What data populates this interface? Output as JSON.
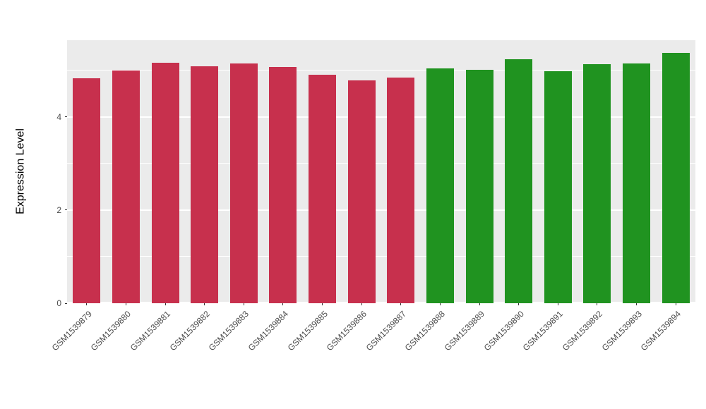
{
  "figure": {
    "background": "#FFFFFF"
  },
  "chart_data": {
    "type": "bar",
    "title": "",
    "xlabel": "",
    "ylabel": "Expression Level",
    "ylim": [
      0,
      5.65
    ],
    "yticks": [
      0,
      2,
      4
    ],
    "minor_yticks": [
      1,
      3,
      5
    ],
    "grid": true,
    "legend": "none",
    "panel_bg": "#EBEBEB",
    "grid_color": "#FFFFFF",
    "tick_color": "#333333",
    "axis_text_color": "#4D4D4D",
    "axis_title_color": "#000000",
    "group_colors": {
      "group1_red": "#C7304D",
      "group2_green": "#209320"
    },
    "categories": [
      "GSM1539879",
      "GSM1539880",
      "GSM1539881",
      "GSM1539882",
      "GSM1539883",
      "GSM1539884",
      "GSM1539885",
      "GSM1539886",
      "GSM1539887",
      "GSM1539888",
      "GSM1539889",
      "GSM1539890",
      "GSM1539891",
      "GSM1539892",
      "GSM1539893",
      "GSM1539894"
    ],
    "values": [
      4.83,
      5.0,
      5.17,
      5.09,
      5.15,
      5.08,
      4.91,
      4.79,
      4.85,
      5.05,
      5.02,
      5.24,
      4.98,
      5.14,
      5.15,
      5.38
    ],
    "colors": [
      "#C7304D",
      "#C7304D",
      "#C7304D",
      "#C7304D",
      "#C7304D",
      "#C7304D",
      "#C7304D",
      "#C7304D",
      "#C7304D",
      "#209320",
      "#209320",
      "#209320",
      "#209320",
      "#209320",
      "#209320",
      "#209320"
    ]
  }
}
